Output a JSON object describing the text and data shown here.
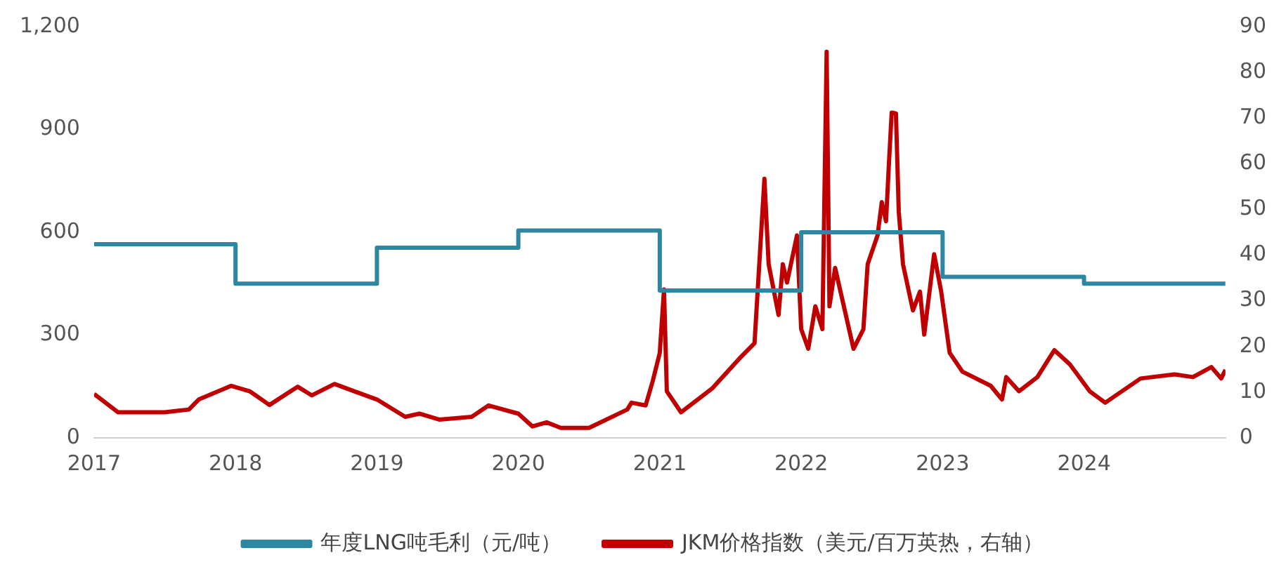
{
  "chart_data": {
    "type": "line",
    "xlim": [
      2017,
      2025
    ],
    "xticks": [
      2017,
      2018,
      2019,
      2020,
      2021,
      2022,
      2023,
      2024
    ],
    "ylim": [
      0,
      1200
    ],
    "yticks": [
      0,
      300,
      600,
      900,
      {
        "value": 1200,
        "label": "1,200"
      }
    ],
    "y2lim": [
      0,
      90
    ],
    "y2ticks": [
      0,
      10,
      20,
      30,
      40,
      50,
      60,
      70,
      80,
      90
    ],
    "grid": false,
    "legend": "bottom",
    "marker": "none",
    "line_style": "solid",
    "series": [
      {
        "name": "年度LNG吨毛利（元/吨）",
        "type": "step",
        "color": "#2e86a0",
        "x": [
          2017,
          2018,
          2019,
          2020,
          2021,
          2022,
          2023,
          2024,
          2025
        ],
        "values": [
          565,
          450,
          555,
          605,
          430,
          600,
          470,
          450,
          450
        ]
      },
      {
        "name": "JKM价格指数（美元/百万英热，右轴）",
        "type": "line",
        "axis": "y2",
        "color": "#c00000",
        "x": [
          2017,
          2017.17,
          2017.5,
          2017.67,
          2017.74,
          2017.97,
          2018.1,
          2018.24,
          2018.44,
          2018.54,
          2018.7,
          2018.84,
          2019,
          2019.2,
          2019.3,
          2019.44,
          2019.67,
          2019.79,
          2020,
          2020.1,
          2020.2,
          2020.3,
          2020.5,
          2020.77,
          2020.8,
          2020.9,
          2020.95,
          2021,
          2021.03,
          2021.05,
          2021.15,
          2021.37,
          2021.57,
          2021.67,
          2021.74,
          2021.77,
          2021.84,
          2021.87,
          2021.9,
          2021.97,
          2022,
          2022.05,
          2022.1,
          2022.15,
          2022.18,
          2022.2,
          2022.24,
          2022.37,
          2022.44,
          2022.47,
          2022.54,
          2022.57,
          2022.6,
          2022.62,
          2022.64,
          2022.67,
          2022.69,
          2022.72,
          2022.79,
          2022.84,
          2022.87,
          2022.94,
          2022.99,
          2023.05,
          2023.14,
          2023.34,
          2023.42,
          2023.45,
          2023.54,
          2023.67,
          2023.79,
          2023.9,
          2024.04,
          2024.15,
          2024.4,
          2024.64,
          2024.77,
          2024.9,
          2024.97,
          2025
        ],
        "values": [
          9.6,
          5.6,
          5.6,
          6.2,
          8.4,
          11.4,
          10.2,
          7.2,
          11.2,
          9.3,
          11.8,
          10.2,
          8.4,
          4.6,
          5.3,
          4,
          4.6,
          7.1,
          5.3,
          2.5,
          3.4,
          2.2,
          2.2,
          6.2,
          7.7,
          7.1,
          12.4,
          18.6,
          32.5,
          10.2,
          5.6,
          10.8,
          17.6,
          20.7,
          56.7,
          38,
          26.9,
          38,
          34,
          44.3,
          23.8,
          19.5,
          28.8,
          23.8,
          84.5,
          28.8,
          37.2,
          19.5,
          23.8,
          38,
          44.3,
          51.6,
          47.4,
          59.8,
          71.2,
          71,
          49.5,
          38,
          27.9,
          32,
          22.6,
          40.2,
          32,
          18.6,
          14.5,
          11.4,
          8.4,
          13.3,
          10.2,
          13.3,
          19.2,
          16.1,
          10.2,
          7.7,
          13,
          13.9,
          13.3,
          15.5,
          13,
          14.9
        ]
      }
    ]
  }
}
